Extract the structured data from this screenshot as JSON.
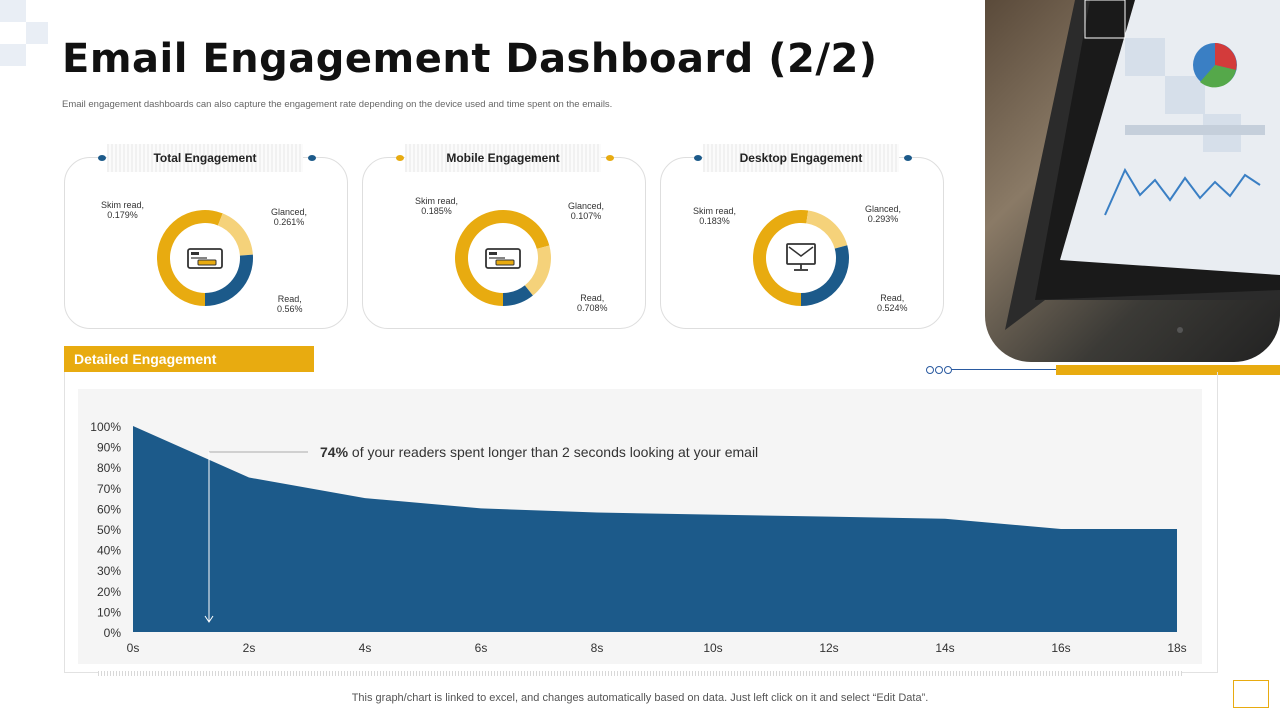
{
  "title": "Email Engagement Dashboard (2/2)",
  "subtitle": "Email  engagement dashboards can also capture the engagement rate depending on the device used and time  spent on the emails.",
  "cards": [
    {
      "title": "Total Engagement",
      "dot_color": "#1c5a8a",
      "segments": [
        {
          "name": "Read",
          "value": 0.56
        },
        {
          "name": "Skim read",
          "value": 0.179
        },
        {
          "name": "Glanced",
          "value": 0.261
        }
      ],
      "skim_label": "Skim read,",
      "skim_value": "0.179%",
      "glanced_label": "Glanced,",
      "glanced_value": "0.261%",
      "read_label": "Read,",
      "read_value": "0.56%",
      "icon": "payment-card-icon"
    },
    {
      "title": "Mobile Engagement",
      "dot_color": "#e8ab10",
      "segments": [
        {
          "name": "Read",
          "value": 0.708
        },
        {
          "name": "Skim read",
          "value": 0.185
        },
        {
          "name": "Glanced",
          "value": 0.107
        }
      ],
      "skim_label": "Skim read,",
      "skim_value": "0.185%",
      "glanced_label": "Glanced,",
      "glanced_value": "0.107%",
      "read_label": "Read,",
      "read_value": "0.708%",
      "icon": "payment-card-icon"
    },
    {
      "title": "Desktop Engagement",
      "dot_color": "#1c5a8a",
      "segments": [
        {
          "name": "Read",
          "value": 0.524
        },
        {
          "name": "Skim read",
          "value": 0.183
        },
        {
          "name": "Glanced",
          "value": 0.293
        }
      ],
      "skim_label": "Skim read,",
      "skim_value": "0.183%",
      "glanced_label": "Glanced,",
      "glanced_value": "0.293%",
      "read_label": "Read,",
      "read_value": "0.524%",
      "icon": "desktop-mail-icon"
    }
  ],
  "colors": {
    "read": "#e8ab10",
    "skim": "#f5d27a",
    "glanced": "#1c5a8a",
    "area": "#1c5a8a",
    "accent": "#e8ab10"
  },
  "section_title": "Detailed Engagement",
  "annotation": {
    "highlight": "74%",
    "text": " of your readers spent longer than 2 seconds looking at your email"
  },
  "footer": "This graph/chart is linked to excel,  and changes automatically based on data. Just left click on it and select “Edit Data”.",
  "chart_data": {
    "type": "area",
    "x": [
      "0s",
      "2s",
      "4s",
      "6s",
      "8s",
      "10s",
      "12s",
      "14s",
      "16s",
      "18s"
    ],
    "values": [
      100,
      75,
      65,
      60,
      58,
      57,
      56,
      55,
      50,
      50
    ],
    "ylim": [
      0,
      100
    ],
    "yticks": [
      "0%",
      "10%",
      "20%",
      "30%",
      "40%",
      "50%",
      "60%",
      "70%",
      "80%",
      "90%",
      "100%"
    ],
    "grid": false
  }
}
